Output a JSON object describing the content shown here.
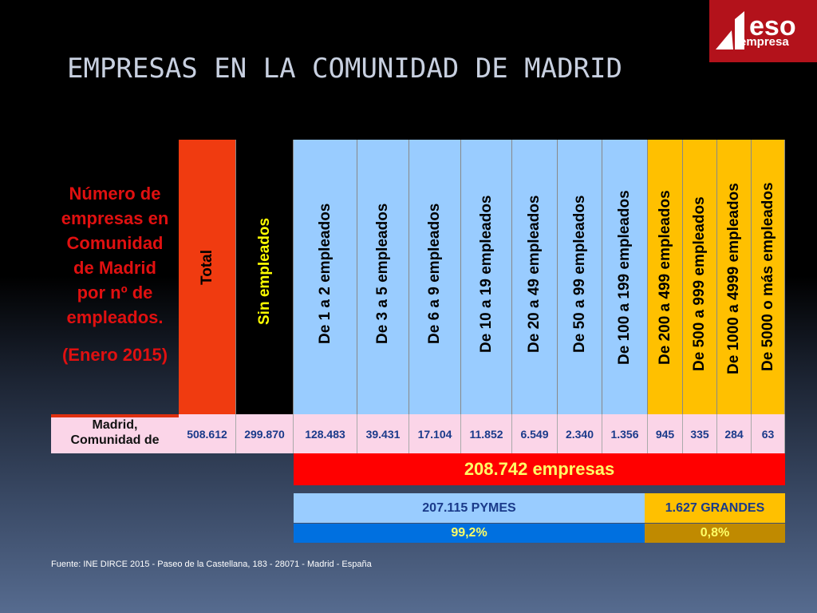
{
  "title": "EMPRESAS EN LA COMUNIDAD DE MADRID",
  "logo": {
    "brand": "eso",
    "text": "empresa"
  },
  "caption": {
    "lines": [
      "Número de",
      "empresas en",
      "Comunidad",
      "de Madrid",
      "por nº de",
      "empleados."
    ],
    "date": "(Enero 2015)"
  },
  "table": {
    "headers": [
      "Total",
      "Sin empleados",
      "De 1 a 2 empleados",
      "De 3 a 5 empleados",
      "De 6 a 9 empleados",
      "De 10 a 19 empleados",
      "De 20 a 49 empleados",
      "De 50 a 99 empleados",
      "De 100 a 199 empleados",
      "De 200 a 499 empleados",
      "De 500 a 999 empleados",
      "De 1000 a 4999 empleados",
      "De 5000 o más empleados"
    ],
    "row_label": [
      "Madrid,",
      "Comunidad de"
    ],
    "values": [
      "508.612",
      "299.870",
      "128.483",
      "39.431",
      "17.104",
      "11.852",
      "6.549",
      "2.340",
      "1.356",
      "945",
      "335",
      "284",
      "63"
    ]
  },
  "summary": {
    "total": "208.742 empresas",
    "pymes": "207.115 PYMES",
    "grandes": "1.627 GRANDES",
    "pymes_pct": "99,2%",
    "grandes_pct": "0,8%"
  },
  "source": "Fuente: INE  DIRCE 2015 - Paseo de la Castellana, 183 - 28071 - Madrid - España",
  "colors": {
    "total": "#f03b10",
    "sin_empleados": "#000000",
    "small": "#99ccff",
    "large": "#ffc000",
    "values_bg": "#fbd5e8",
    "total_band": "#ff0000",
    "pymes_pct_band": "#0070e0",
    "grandes_pct_band": "#c08a00",
    "caption": "#e01010"
  }
}
